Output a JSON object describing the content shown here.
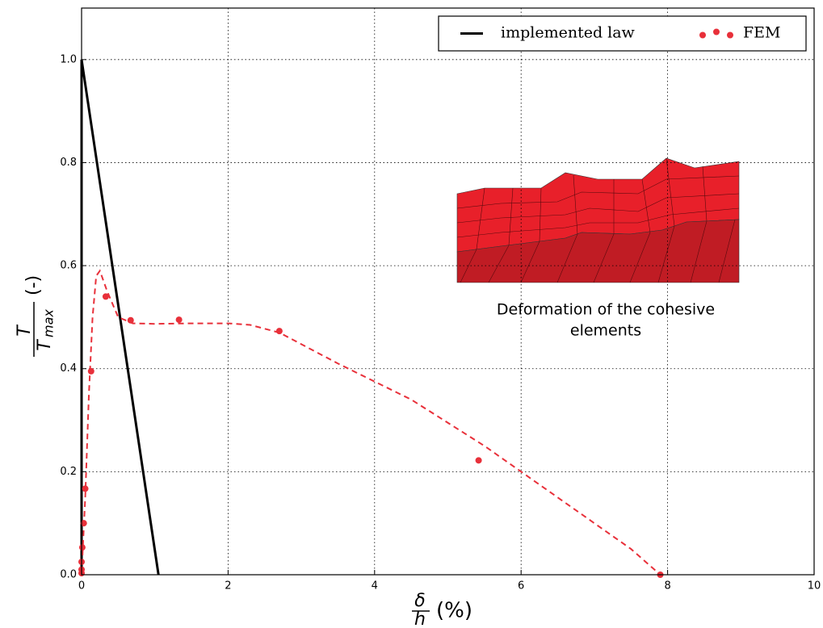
{
  "chart_data": {
    "type": "line",
    "xlim": [
      0,
      10
    ],
    "ylim": [
      0,
      1.1
    ],
    "xticks": [
      0,
      2,
      4,
      6,
      8,
      10
    ],
    "yticks": [
      {
        "value": 0,
        "label": "0.0"
      },
      0.2,
      0.4,
      0.6,
      0.8,
      {
        "value": 1,
        "label": "1.0"
      }
    ],
    "grid": true,
    "legend": "upper right",
    "y_label": {
      "numerator": "T",
      "denominator": "T",
      "subscript": "max",
      "unit": "(-)"
    },
    "x_label": {
      "numerator": "δ",
      "denominator": "h",
      "unit": "(%)"
    },
    "annotation": [
      "Deformation of the cohesive",
      "elements"
    ],
    "series": [
      {
        "name": "implemented law",
        "color": "#000000",
        "style": "solid",
        "x": [
          0,
          0,
          1.05
        ],
        "values": [
          0,
          1,
          0
        ]
      },
      {
        "name": "FEM",
        "color": "#e8303a",
        "style": "dots",
        "x": [
          0,
          0,
          0,
          0.01,
          0.03,
          0.05,
          0.13,
          0.33,
          0.67,
          1.33,
          2.7,
          5.42,
          7.9
        ],
        "values": [
          0.003,
          0.01,
          0.025,
          0.053,
          0.1,
          0.167,
          0.395,
          0.54,
          0.494,
          0.495,
          0.473,
          0.222,
          0
        ]
      },
      {
        "color": "#e8303a",
        "style": "dashed",
        "x": [
          0,
          0.05,
          0.1,
          0.15,
          0.2,
          0.25,
          0.35,
          0.5,
          0.7,
          1,
          1.5,
          2,
          2.3,
          2.7,
          3.5,
          4.5,
          5.5,
          6.5,
          7.5,
          7.9
        ],
        "values": [
          0,
          0.15,
          0.35,
          0.5,
          0.58,
          0.59,
          0.55,
          0.5,
          0.488,
          0.487,
          0.488,
          0.488,
          0.485,
          0.47,
          0.41,
          0.34,
          0.25,
          0.15,
          0.05,
          0
        ]
      }
    ]
  }
}
